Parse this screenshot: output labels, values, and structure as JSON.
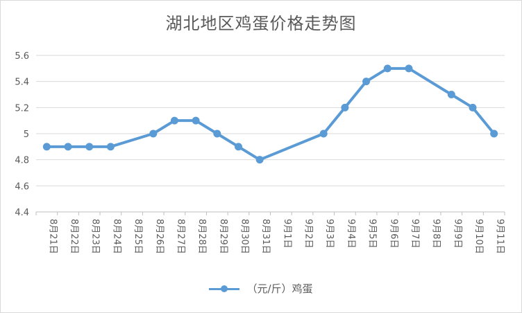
{
  "chart_data": {
    "type": "line",
    "title": "湖北地区鸡蛋价格走势图",
    "categories": [
      "8月21日",
      "8月22日",
      "8月23日",
      "8月24日",
      "8月25日",
      "8月26日",
      "8月27日",
      "8月28日",
      "8月29日",
      "8月30日",
      "8月31日",
      "9月1日",
      "9月2日",
      "9月3日",
      "9月4日",
      "9月5日",
      "9月6日",
      "9月7日",
      "9月8日",
      "9月9日",
      "9月10日",
      "9月11日"
    ],
    "series": [
      {
        "name": "（元/斤）鸡蛋",
        "color": "#5b9bd5",
        "values": [
          4.9,
          4.9,
          4.9,
          4.9,
          null,
          5.0,
          5.1,
          5.1,
          5.0,
          4.9,
          4.8,
          null,
          null,
          5.0,
          5.2,
          5.4,
          5.5,
          5.5,
          null,
          5.3,
          5.2,
          5.0
        ]
      }
    ],
    "ylim": [
      4.4,
      5.6
    ],
    "yticks": [
      "4.4",
      "4.6",
      "4.8",
      "5",
      "5.2",
      "5.4",
      "5.6"
    ],
    "grid": true,
    "legend_position": "bottom",
    "xlabel": "",
    "ylabel": ""
  }
}
